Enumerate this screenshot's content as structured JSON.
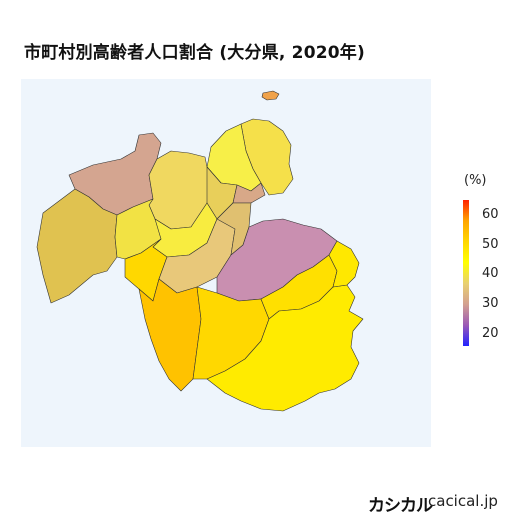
{
  "title": "市町村別高齢者人口割合 (大分県, 2020年)",
  "colors": {
    "map_background": "#eef5fc",
    "region_outline": "#333333",
    "legend_gradient": [
      "#2222ff",
      "#9b59b6",
      "#d3a090",
      "#e8d070",
      "#ffff00",
      "#ffd700",
      "#ffa500",
      "#ff2200"
    ]
  },
  "legend": {
    "unit": "(%)",
    "ticks": [
      "60",
      "50",
      "40",
      "30",
      "20"
    ],
    "range": [
      17,
      66
    ]
  },
  "regions": [
    {
      "id": "r01",
      "color": "#f0a24a"
    },
    {
      "id": "r02",
      "color": "#f5e04a"
    },
    {
      "id": "r03",
      "color": "#f7ef48"
    },
    {
      "id": "r04",
      "color": "#d4a590"
    },
    {
      "id": "r05",
      "color": "#f0d860"
    },
    {
      "id": "r06",
      "color": "#e8cf5a"
    },
    {
      "id": "r07",
      "color": "#e0c250"
    },
    {
      "id": "r08",
      "color": "#f2e244"
    },
    {
      "id": "r09",
      "color": "#d8a888"
    },
    {
      "id": "r10",
      "color": "#f8ec40"
    },
    {
      "id": "r11",
      "color": "#ffd800"
    },
    {
      "id": "r12",
      "color": "#e8c87a"
    },
    {
      "id": "r13",
      "color": "#e0c070"
    },
    {
      "id": "r14",
      "color": "#c98fb0"
    },
    {
      "id": "r15",
      "color": "#ffc200"
    },
    {
      "id": "r16",
      "color": "#ffd800"
    },
    {
      "id": "r17",
      "color": "#ffe000"
    },
    {
      "id": "r18",
      "color": "#ffeb00"
    },
    {
      "id": "r19",
      "color": "#ffe800"
    }
  ],
  "brand": "カシカル",
  "site": "cacical.jp"
}
